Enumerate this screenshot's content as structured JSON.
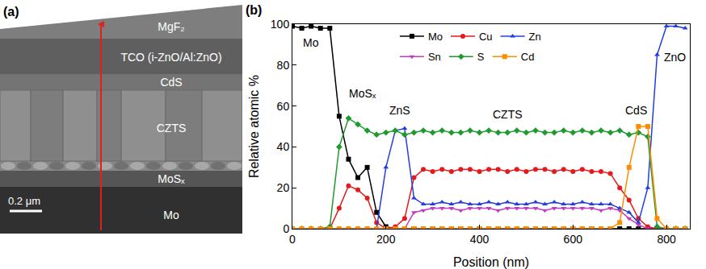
{
  "panel_a": {
    "label": "(a)",
    "layers": [
      "MgF₂",
      "TCO (i-ZnO/Al:ZnO)",
      "CdS",
      "CZTS",
      "MoSₓ",
      "Mo"
    ],
    "scale_bar": "0.2 μm"
  },
  "chart_data": {
    "type": "line",
    "panel_label": "(b)",
    "xlabel": "Position (nm)",
    "ylabel": "Relative atomic %",
    "x": [
      0,
      20,
      40,
      60,
      80,
      100,
      120,
      140,
      160,
      180,
      200,
      220,
      240,
      260,
      280,
      300,
      320,
      340,
      360,
      380,
      400,
      420,
      440,
      460,
      480,
      500,
      520,
      540,
      560,
      580,
      600,
      620,
      640,
      660,
      680,
      700,
      720,
      740,
      760,
      780,
      800,
      820,
      840
    ],
    "series": [
      {
        "name": "Mo",
        "color": "#000000",
        "marker": "square",
        "values": [
          99,
          98,
          99,
          98,
          98,
          55,
          34,
          25,
          30,
          8,
          1,
          0,
          0,
          0,
          0,
          0,
          0,
          0,
          0,
          0,
          0,
          0,
          0,
          0,
          0,
          0,
          0,
          0,
          0,
          0,
          0,
          0,
          0,
          0,
          0,
          0,
          0,
          0,
          0,
          0,
          0,
          0,
          0
        ]
      },
      {
        "name": "Cu",
        "color": "#e41a1c",
        "marker": "circle",
        "values": [
          0,
          0,
          0,
          0,
          0,
          10,
          21,
          19,
          15,
          3,
          0,
          1,
          5,
          25,
          29,
          28,
          29,
          28,
          29,
          29,
          28,
          29,
          29,
          28,
          29,
          28,
          29,
          29,
          28,
          29,
          28,
          29,
          28,
          28,
          27,
          20,
          14,
          5,
          1,
          0,
          0,
          0,
          0
        ]
      },
      {
        "name": "Zn",
        "color": "#1f3fe0",
        "marker": "triangle-up",
        "values": [
          0,
          0,
          0,
          0,
          0,
          0,
          0,
          0,
          0,
          0,
          30,
          48,
          49,
          15,
          12,
          12,
          13,
          12,
          13,
          12,
          12,
          13,
          12,
          13,
          12,
          12,
          13,
          12,
          13,
          12,
          12,
          13,
          12,
          12,
          12,
          10,
          8,
          3,
          20,
          85,
          99,
          99,
          98
        ]
      },
      {
        "name": "Sn",
        "color": "#c03cc0",
        "marker": "triangle-down",
        "values": [
          0,
          0,
          0,
          0,
          0,
          0,
          0,
          0,
          0,
          0,
          0,
          0,
          0,
          8,
          9,
          10,
          10,
          10,
          9,
          10,
          10,
          10,
          9,
          10,
          10,
          10,
          10,
          9,
          10,
          10,
          10,
          10,
          10,
          9,
          10,
          9,
          5,
          2,
          0,
          0,
          0,
          0,
          0
        ]
      },
      {
        "name": "S",
        "color": "#1e9a2e",
        "marker": "diamond",
        "values": [
          0,
          0,
          0,
          0,
          1,
          40,
          54,
          51,
          48,
          46,
          47,
          48,
          46,
          47,
          48,
          47,
          48,
          47,
          47,
          48,
          47,
          48,
          47,
          47,
          48,
          47,
          48,
          47,
          47,
          48,
          47,
          48,
          47,
          48,
          47,
          48,
          46,
          47,
          45,
          1,
          0,
          0,
          0
        ]
      },
      {
        "name": "Cd",
        "color": "#ff8c00",
        "marker": "square",
        "values": [
          0,
          0,
          0,
          0,
          0,
          0,
          0,
          0,
          0,
          0,
          0,
          0,
          0,
          0,
          0,
          0,
          0,
          0,
          0,
          0,
          0,
          0,
          0,
          0,
          0,
          0,
          0,
          0,
          0,
          0,
          0,
          0,
          0,
          0,
          0,
          3,
          30,
          50,
          50,
          5,
          0,
          0,
          0
        ]
      }
    ],
    "xlim": [
      0,
      850
    ],
    "xticks": [
      0,
      200,
      400,
      600,
      800
    ],
    "ylim": [
      0,
      100
    ],
    "yticks": [
      0,
      20,
      40,
      60,
      80,
      100
    ],
    "grid": false,
    "legend": "top",
    "annotations": [
      {
        "text": "Mo",
        "x": 40,
        "y": 91
      },
      {
        "text": "MoSₓ",
        "x": 150,
        "y": 66
      },
      {
        "text": "ZnS",
        "x": 230,
        "y": 58
      },
      {
        "text": "CZTS",
        "x": 460,
        "y": 56
      },
      {
        "text": "CdS",
        "x": 735,
        "y": 58
      },
      {
        "text": "ZnO",
        "x": 818,
        "y": 84
      }
    ]
  }
}
